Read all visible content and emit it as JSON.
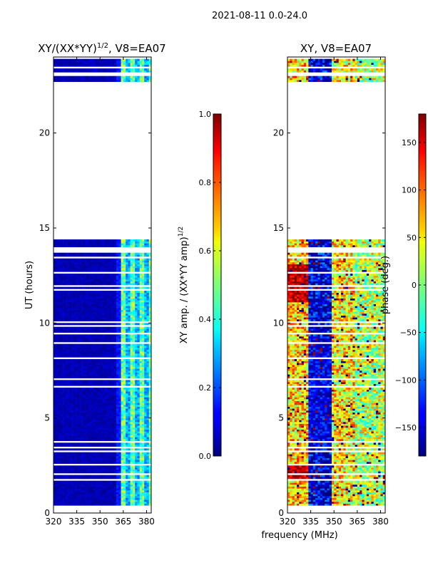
{
  "suptitle": "2021-08-11 0.0-24.0",
  "colors": {
    "background": "#ffffff",
    "axes_edge": "#000000",
    "gap": "#ffffff"
  },
  "chart_data": [
    {
      "type": "heatmap",
      "title_main": "XY/(XX*YY)",
      "title_sup": "1/2",
      "title_rest": ", V8=EA07",
      "xlabel": "",
      "ylabel": "UT (hours)",
      "xlim": [
        320,
        383
      ],
      "ylim": [
        0,
        24
      ],
      "xticks": [
        320,
        335,
        350,
        365,
        380
      ],
      "yticks": [
        0,
        5,
        10,
        15,
        20
      ],
      "colormap": "jet",
      "colorbar": {
        "label_main": "XY amp. / (XX*YY amp)",
        "label_sup": "1/2",
        "range": [
          0.0,
          1.0
        ],
        "ticks": [
          "0.0",
          "0.2",
          "0.4",
          "0.6",
          "0.8",
          "1.0"
        ],
        "tick_values": [
          0.0,
          0.2,
          0.4,
          0.6,
          0.8,
          1.0
        ]
      },
      "data_time_ranges_hours": [
        [
          0.4,
          14.4
        ],
        [
          22.5,
          23.9
        ]
      ],
      "channel_regimes": [
        {
          "freq_range_MHz": [
            320,
            360
          ],
          "typical_value": 0.05,
          "description": "low amplitude"
        },
        {
          "freq_range_MHz": [
            360,
            363
          ],
          "typical_value": 0.15,
          "description": "transition"
        },
        {
          "freq_range_MHz": [
            363,
            383
          ],
          "typical_value": 0.45,
          "description": "banded high amplitude"
        }
      ]
    },
    {
      "type": "heatmap",
      "title_main": "XY, V8=EA07",
      "xlabel": "frequency (MHz)",
      "ylabel": "",
      "xlim": [
        320,
        383
      ],
      "ylim": [
        0,
        24
      ],
      "xticks": [
        320,
        335,
        350,
        365,
        380
      ],
      "yticks": [
        0,
        5,
        10,
        15,
        20
      ],
      "colormap": "jet",
      "colorbar": {
        "label_main": "phase (deg.)",
        "range": [
          -180,
          180
        ],
        "ticks": [
          "−150",
          "−100",
          "−50",
          "0",
          "50",
          "100",
          "150"
        ],
        "tick_values": [
          -150,
          -100,
          -50,
          0,
          50,
          100,
          150
        ]
      },
      "data_time_ranges_hours": [
        [
          0.4,
          14.4
        ],
        [
          22.5,
          23.9
        ]
      ],
      "channel_regimes": [
        {
          "freq_range_MHz": [
            320,
            333
          ],
          "typical_value": 60,
          "description": "mixed green/yellow/red, red near 12 h and 2 h"
        },
        {
          "freq_range_MHz": [
            333,
            348
          ],
          "typical_value": -150,
          "description": "blue band between 3.5 and 9 h"
        },
        {
          "freq_range_MHz": [
            348,
            363
          ],
          "typical_value": 50,
          "description": "yellow/green"
        },
        {
          "freq_range_MHz": [
            363,
            383
          ],
          "typical_value": 20,
          "description": "mixed with red and blue streaks"
        }
      ]
    }
  ]
}
